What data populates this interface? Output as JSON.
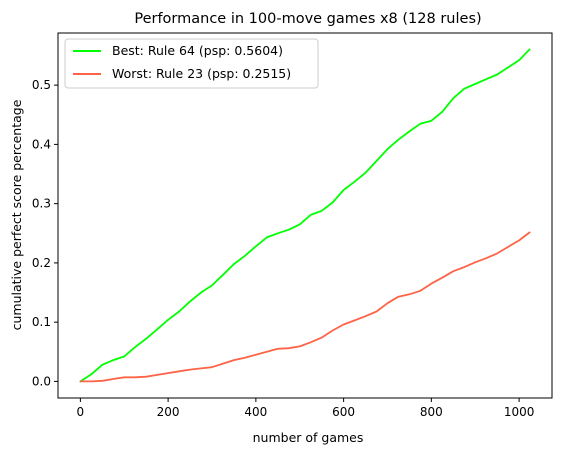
{
  "chart_data": {
    "type": "line",
    "title": "Performance in 100-move games x8 (128 rules)",
    "xlabel": "number of games",
    "ylabel": "cumulative perfect score percentage",
    "xlim": [
      -51,
      1075
    ],
    "ylim": [
      -0.028,
      0.588
    ],
    "xticks": [
      0,
      200,
      400,
      600,
      800,
      1000
    ],
    "yticks": [
      0.0,
      0.1,
      0.2,
      0.3,
      0.4,
      0.5
    ],
    "xtick_labels": [
      "0",
      "200",
      "400",
      "600",
      "800",
      "1000"
    ],
    "ytick_labels": [
      "0.0",
      "0.1",
      "0.2",
      "0.3",
      "0.4",
      "0.5"
    ],
    "grid": false,
    "legend_position": "top-left",
    "series": [
      {
        "name": "Best: Rule 64 (psp: 0.5604)",
        "color": "#00ff00",
        "x": [
          0,
          25,
          50,
          75,
          100,
          125,
          150,
          175,
          200,
          225,
          250,
          275,
          300,
          325,
          350,
          375,
          400,
          425,
          450,
          475,
          500,
          525,
          550,
          575,
          600,
          625,
          650,
          675,
          700,
          725,
          750,
          775,
          800,
          825,
          850,
          875,
          900,
          925,
          950,
          975,
          1000,
          1024
        ],
        "y": [
          0.0,
          0.012,
          0.028,
          0.036,
          0.042,
          0.058,
          0.072,
          0.088,
          0.104,
          0.118,
          0.135,
          0.15,
          0.162,
          0.18,
          0.198,
          0.212,
          0.228,
          0.243,
          0.25,
          0.256,
          0.265,
          0.281,
          0.288,
          0.302,
          0.323,
          0.337,
          0.352,
          0.372,
          0.392,
          0.408,
          0.422,
          0.435,
          0.44,
          0.455,
          0.478,
          0.494,
          0.502,
          0.51,
          0.518,
          0.53,
          0.542,
          0.5604
        ]
      },
      {
        "name": "Worst: Rule 23 (psp: 0.2515)",
        "color": "#ff6347",
        "x": [
          0,
          25,
          50,
          75,
          100,
          125,
          150,
          175,
          200,
          225,
          250,
          275,
          300,
          325,
          350,
          375,
          400,
          425,
          450,
          475,
          500,
          525,
          550,
          575,
          600,
          625,
          650,
          675,
          700,
          725,
          750,
          775,
          800,
          825,
          850,
          875,
          900,
          925,
          950,
          975,
          1000,
          1024
        ],
        "y": [
          0.0,
          0.0,
          0.001,
          0.004,
          0.007,
          0.007,
          0.008,
          0.011,
          0.014,
          0.017,
          0.02,
          0.022,
          0.024,
          0.03,
          0.036,
          0.04,
          0.045,
          0.05,
          0.055,
          0.056,
          0.059,
          0.066,
          0.074,
          0.086,
          0.096,
          0.103,
          0.11,
          0.118,
          0.132,
          0.143,
          0.147,
          0.153,
          0.165,
          0.175,
          0.186,
          0.193,
          0.201,
          0.208,
          0.216,
          0.227,
          0.238,
          0.2515
        ]
      }
    ]
  }
}
